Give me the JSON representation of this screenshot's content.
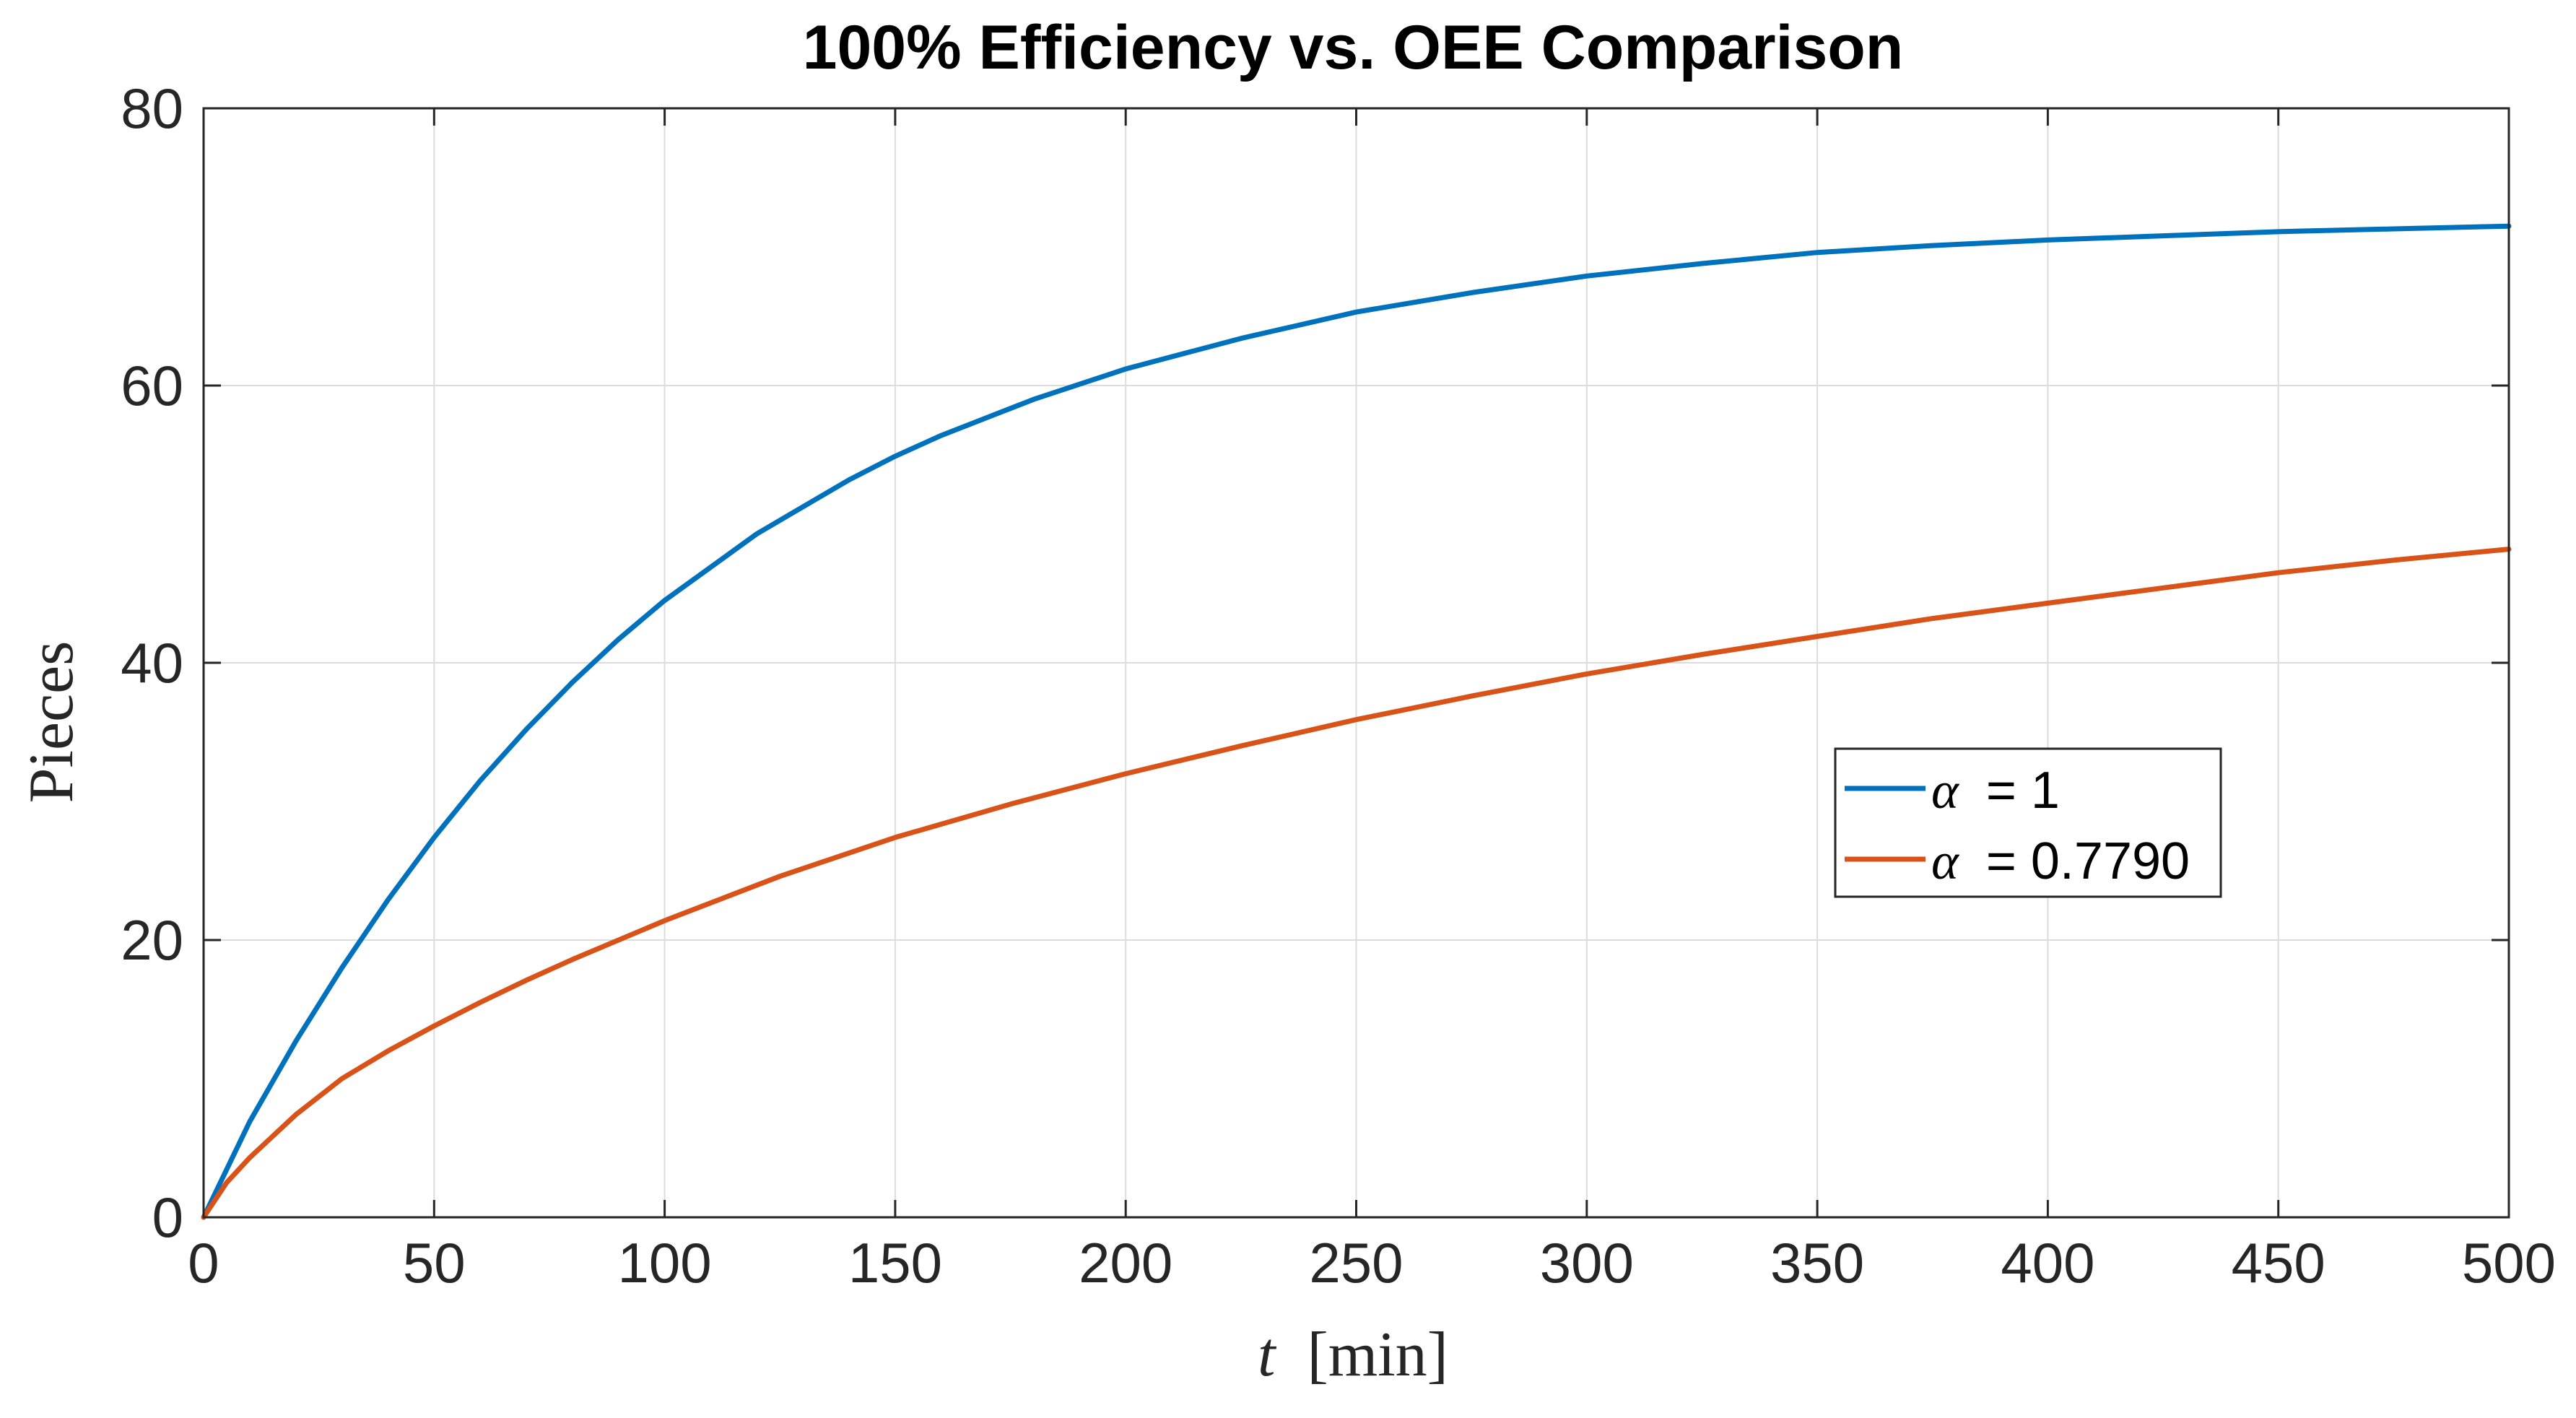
{
  "chart_data": {
    "type": "line",
    "title": "100% Efficiency vs. OEE Comparison",
    "xlabel": "t [min]",
    "xlabel_var": "t",
    "xlabel_unit": "[min]",
    "ylabel": "Pieces",
    "xlim": [
      0,
      500
    ],
    "ylim": [
      0,
      80
    ],
    "xticks": [
      0,
      50,
      100,
      150,
      200,
      250,
      300,
      350,
      400,
      450,
      500
    ],
    "yticks": [
      0,
      20,
      40,
      60,
      80
    ],
    "grid": true,
    "legend_position": "right-center",
    "series": [
      {
        "name": "α = 1",
        "symbol": "α",
        "value_text": "= 1",
        "color": "#0072BD",
        "x": [
          0,
          10,
          20,
          30,
          40,
          50,
          60,
          70,
          80,
          90,
          100,
          120,
          140,
          150,
          160,
          180,
          200,
          225,
          250,
          275,
          300,
          325,
          350,
          375,
          400,
          425,
          450,
          475,
          500
        ],
        "y": [
          0,
          6.9,
          12.7,
          18.0,
          22.9,
          27.4,
          31.5,
          35.2,
          38.6,
          41.7,
          44.5,
          49.3,
          53.2,
          54.9,
          56.4,
          59.0,
          61.2,
          63.4,
          65.3,
          66.7,
          67.9,
          68.8,
          69.6,
          70.1,
          70.5,
          70.8,
          71.1,
          71.3,
          71.5
        ]
      },
      {
        "name": "α = 0.7790",
        "symbol": "α",
        "value_text": "= 0.7790",
        "color": "#D95319",
        "x": [
          0,
          5,
          10,
          20,
          30,
          40,
          50,
          60,
          70,
          80,
          100,
          125,
          150,
          175,
          200,
          225,
          250,
          275,
          300,
          325,
          350,
          375,
          400,
          425,
          450,
          475,
          500
        ],
        "y": [
          0,
          2.5,
          4.3,
          7.4,
          10.0,
          12.0,
          13.8,
          15.5,
          17.1,
          18.6,
          21.4,
          24.6,
          27.4,
          29.8,
          32.0,
          34.0,
          35.9,
          37.6,
          39.2,
          40.6,
          41.9,
          43.2,
          44.3,
          45.4,
          46.5,
          47.4,
          48.2
        ]
      }
    ]
  }
}
